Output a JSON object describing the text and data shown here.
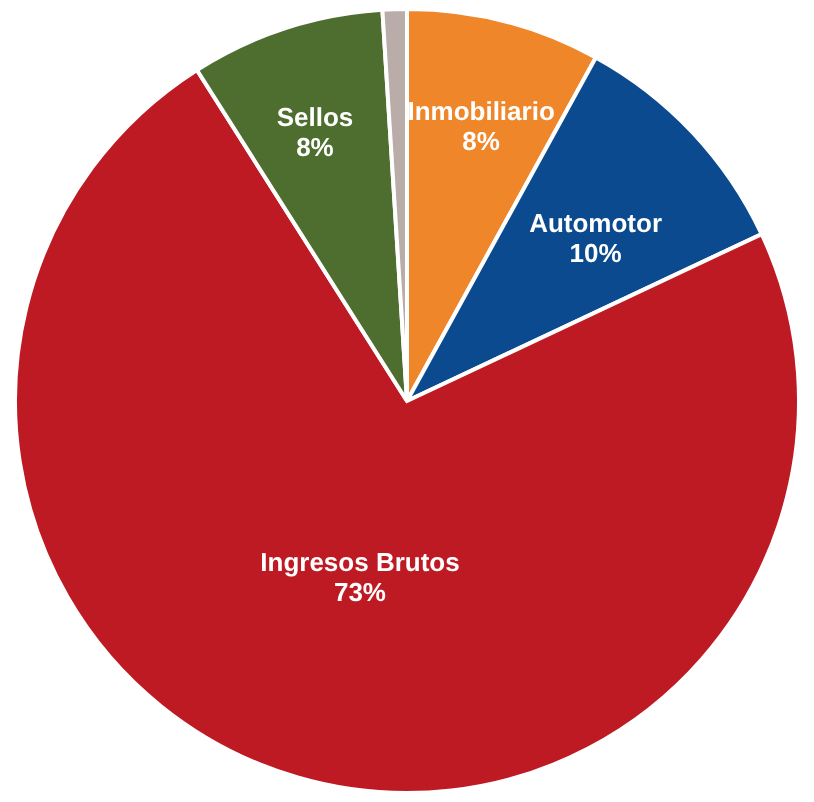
{
  "chart_data": {
    "type": "pie",
    "categories": [
      "Inmobiliario",
      "Automotor",
      "Ingresos Brutos",
      "Sellos",
      null
    ],
    "values": [
      8,
      10,
      73,
      8,
      1
    ],
    "value_labels": [
      "8%",
      "10%",
      "73%",
      "8%",
      null
    ],
    "colors": [
      "#f0862a",
      "#0b4a8f",
      "#bd1a24",
      "#4e6e2f",
      "#b9aca9"
    ]
  }
}
